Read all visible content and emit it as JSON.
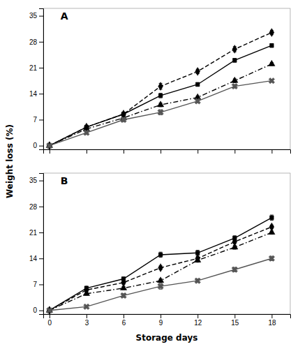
{
  "chart_data": [
    {
      "type": "line",
      "title": "A",
      "ylabel": "Weight loss (%)",
      "x": [
        0,
        3,
        6,
        9,
        12,
        15,
        18
      ],
      "series": [
        {
          "color": "black",
          "marker": "diamond",
          "line_style": "dashed",
          "values": [
            0,
            5.0,
            8.5,
            16.0,
            20.0,
            26.0,
            30.5
          ],
          "yerr": [
            0,
            0.4,
            0.5,
            0.8,
            0.6,
            0.7,
            0.6
          ]
        },
        {
          "color": "black",
          "marker": "square",
          "line_style": "solid",
          "values": [
            0,
            5.0,
            8.5,
            13.5,
            16.5,
            23.0,
            27.0
          ],
          "yerr": [
            0,
            0.4,
            0.4,
            0.6,
            0.5,
            0.5,
            0.5
          ]
        },
        {
          "color": "black",
          "marker": "triangle",
          "line_style": "dashdot",
          "values": [
            0,
            4.5,
            7.5,
            11.0,
            13.0,
            17.5,
            22.0
          ],
          "yerr": [
            0,
            0.3,
            0.4,
            0.5,
            0.4,
            0.5,
            0.4
          ]
        },
        {
          "color": "#555555",
          "marker": "x",
          "line_style": "solid",
          "values": [
            0,
            3.5,
            7.0,
            9.0,
            12.0,
            16.0,
            17.5
          ],
          "yerr": [
            0,
            0.5,
            0.6,
            0.7,
            0.5,
            0.5,
            0.4
          ]
        }
      ],
      "xlim": [
        -0.5,
        19.5
      ],
      "xticks": [
        0,
        3,
        6,
        9,
        12,
        15,
        18
      ],
      "ylim": [
        -1,
        37
      ],
      "yticks": [
        0,
        7,
        14,
        21,
        28,
        35
      ],
      "grid": false,
      "tick_labels": "y"
    },
    {
      "type": "line",
      "title": "B",
      "xlabel": "Storage days",
      "x": [
        0,
        3,
        6,
        9,
        12,
        15,
        18
      ],
      "series": [
        {
          "color": "black",
          "marker": "diamond",
          "line_style": "dashed",
          "values": [
            0,
            5.5,
            7.5,
            11.5,
            14.0,
            18.5,
            22.5
          ],
          "yerr": [
            0,
            0.4,
            0.4,
            0.5,
            0.6,
            0.5,
            0.5
          ]
        },
        {
          "color": "black",
          "marker": "square",
          "line_style": "solid",
          "values": [
            0,
            6.0,
            8.5,
            15.0,
            15.5,
            19.5,
            25.0
          ],
          "yerr": [
            0,
            0.5,
            0.5,
            0.7,
            0.7,
            0.6,
            0.7
          ]
        },
        {
          "color": "black",
          "marker": "triangle",
          "line_style": "dashdot",
          "values": [
            0,
            4.5,
            6.0,
            8.0,
            13.5,
            17.0,
            21.0
          ],
          "yerr": [
            0,
            0.4,
            0.4,
            0.5,
            0.5,
            0.5,
            0.4
          ]
        },
        {
          "color": "#555555",
          "marker": "x",
          "line_style": "solid",
          "values": [
            0,
            1.0,
            4.0,
            6.5,
            8.0,
            11.0,
            14.0
          ],
          "yerr": [
            0,
            0.3,
            0.5,
            0.8,
            0.5,
            0.6,
            0.6
          ]
        }
      ],
      "xlim": [
        -0.5,
        19.5
      ],
      "xticks": [
        0,
        3,
        6,
        9,
        12,
        15,
        18
      ],
      "ylim": [
        -1,
        37
      ],
      "yticks": [
        0,
        7,
        14,
        21,
        28,
        35
      ],
      "grid": false
    }
  ]
}
